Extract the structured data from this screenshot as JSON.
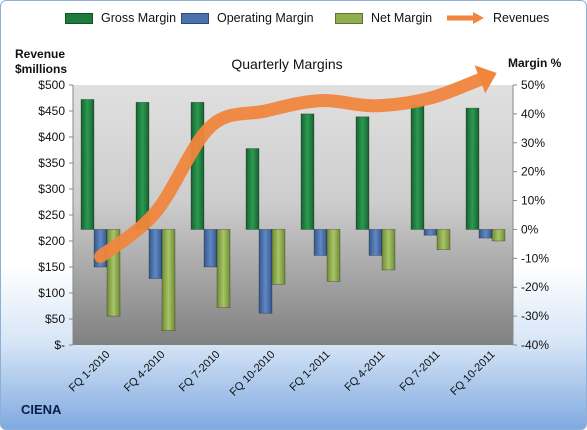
{
  "legend": {
    "gross": "Gross Margin",
    "operating": "Operating Margin",
    "net": "Net Margin",
    "revenues": "Revenues"
  },
  "axis": {
    "left_title_line1": "Revenue",
    "left_title_line2": "$millions",
    "right_title": "Margin %"
  },
  "brand": "CIENA",
  "colors": {
    "gross": "#1f7a3e",
    "operating": "#4a72ad",
    "net": "#8fae4e",
    "revenues": "#f0863e",
    "plot_bg_top": "#d9d9d9",
    "plot_bg_bottom": "#7f7f7f"
  },
  "chart_data": {
    "type": "bar",
    "title": "Quarterly Margins",
    "categories": [
      "FQ 1-2010",
      "FQ 4-2010",
      "FQ 7-2010",
      "FQ 10-2010",
      "FQ 1-2011",
      "FQ 4-2011",
      "FQ 7-2011",
      "FQ 10-2011"
    ],
    "series": [
      {
        "name": "Gross Margin",
        "axis": "right",
        "values": [
          45,
          44,
          44,
          28,
          40,
          39,
          43,
          42
        ]
      },
      {
        "name": "Operating Margin",
        "axis": "right",
        "values": [
          -13,
          -17,
          -13,
          -29,
          -9,
          -9,
          -2,
          -3
        ]
      },
      {
        "name": "Net Margin",
        "axis": "right",
        "values": [
          -30,
          -35,
          -27,
          -19,
          -18,
          -14,
          -7,
          -4
        ]
      },
      {
        "name": "Revenues",
        "type": "line",
        "axis": "left",
        "values": [
          170,
          255,
          420,
          450,
          470,
          460,
          475,
          515
        ]
      }
    ],
    "left_axis": {
      "ticks": [
        "$500",
        "$450",
        "$400",
        "$350",
        "$300",
        "$250",
        "$200",
        "$150",
        "$100",
        "$50",
        "$-"
      ],
      "range": [
        0,
        500
      ]
    },
    "right_axis": {
      "ticks": [
        "50%",
        "40%",
        "30%",
        "20%",
        "10%",
        "0%",
        "-10%",
        "-20%",
        "-30%",
        "-40%"
      ],
      "range": [
        -40,
        50
      ]
    },
    "xlabel": "",
    "grid": false,
    "legend_position": "top"
  }
}
